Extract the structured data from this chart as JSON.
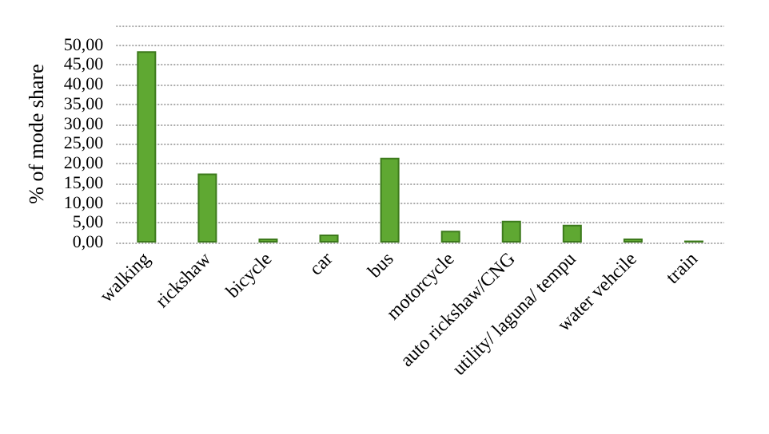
{
  "chart_data": {
    "type": "bar",
    "ylabel": "% of mode share",
    "categories": [
      "walking",
      "rickshaw",
      "bicycle",
      "car",
      "bus",
      "motorcycle",
      "auto rickshaw/CNG",
      "utility/ laguna/ tempu",
      "water vehcile",
      "train"
    ],
    "values": [
      48.5,
      17.5,
      1,
      2,
      21.5,
      3,
      5.5,
      4.5,
      1,
      0.5
    ],
    "color": "#5fa832",
    "ylim": [
      0,
      55
    ],
    "yticks": [
      {
        "value": 0,
        "label": "0,00"
      },
      {
        "value": 5,
        "label": "5,00"
      },
      {
        "value": 10,
        "label": "10,00"
      },
      {
        "value": 15,
        "label": "15,00"
      },
      {
        "value": 20,
        "label": "20,00"
      },
      {
        "value": 25,
        "label": "25,00"
      },
      {
        "value": 30,
        "label": "30,00"
      },
      {
        "value": 35,
        "label": "35,00"
      },
      {
        "value": 40,
        "label": "40,00"
      },
      {
        "value": 45,
        "label": "45,00"
      },
      {
        "value": 50,
        "label": "50,00"
      },
      {
        "value": 55,
        "label": null
      }
    ],
    "grid": true
  }
}
